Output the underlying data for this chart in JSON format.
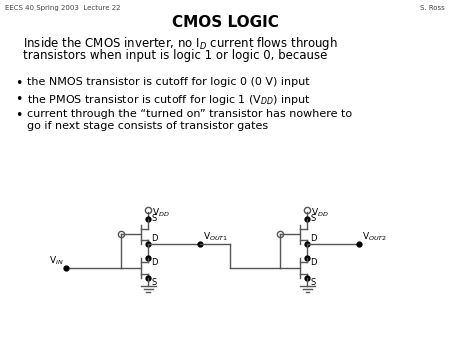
{
  "title": "CMOS LOGIC",
  "header_left": "EECS 40 Spring 2003  Lecture 22",
  "header_right": "S. Ross",
  "bg_color": "#ffffff",
  "text_color": "#000000",
  "line_color": "#555555",
  "bullet1": "the NMOS transistor is cutoff for logic 0 (0 V) input",
  "bullet2": "the PMOS transistor is cutoff for logic 1 (V$_{DD}$) input",
  "bullet3a": "current through the “turned on” transistor has nowhere to",
  "bullet3b": "go if next stage consists of transistor gates",
  "para1": "Inside the CMOS inverter, no I$_D$ current flows through",
  "para2": "transistors when input is logic 1 or logic 0, because"
}
